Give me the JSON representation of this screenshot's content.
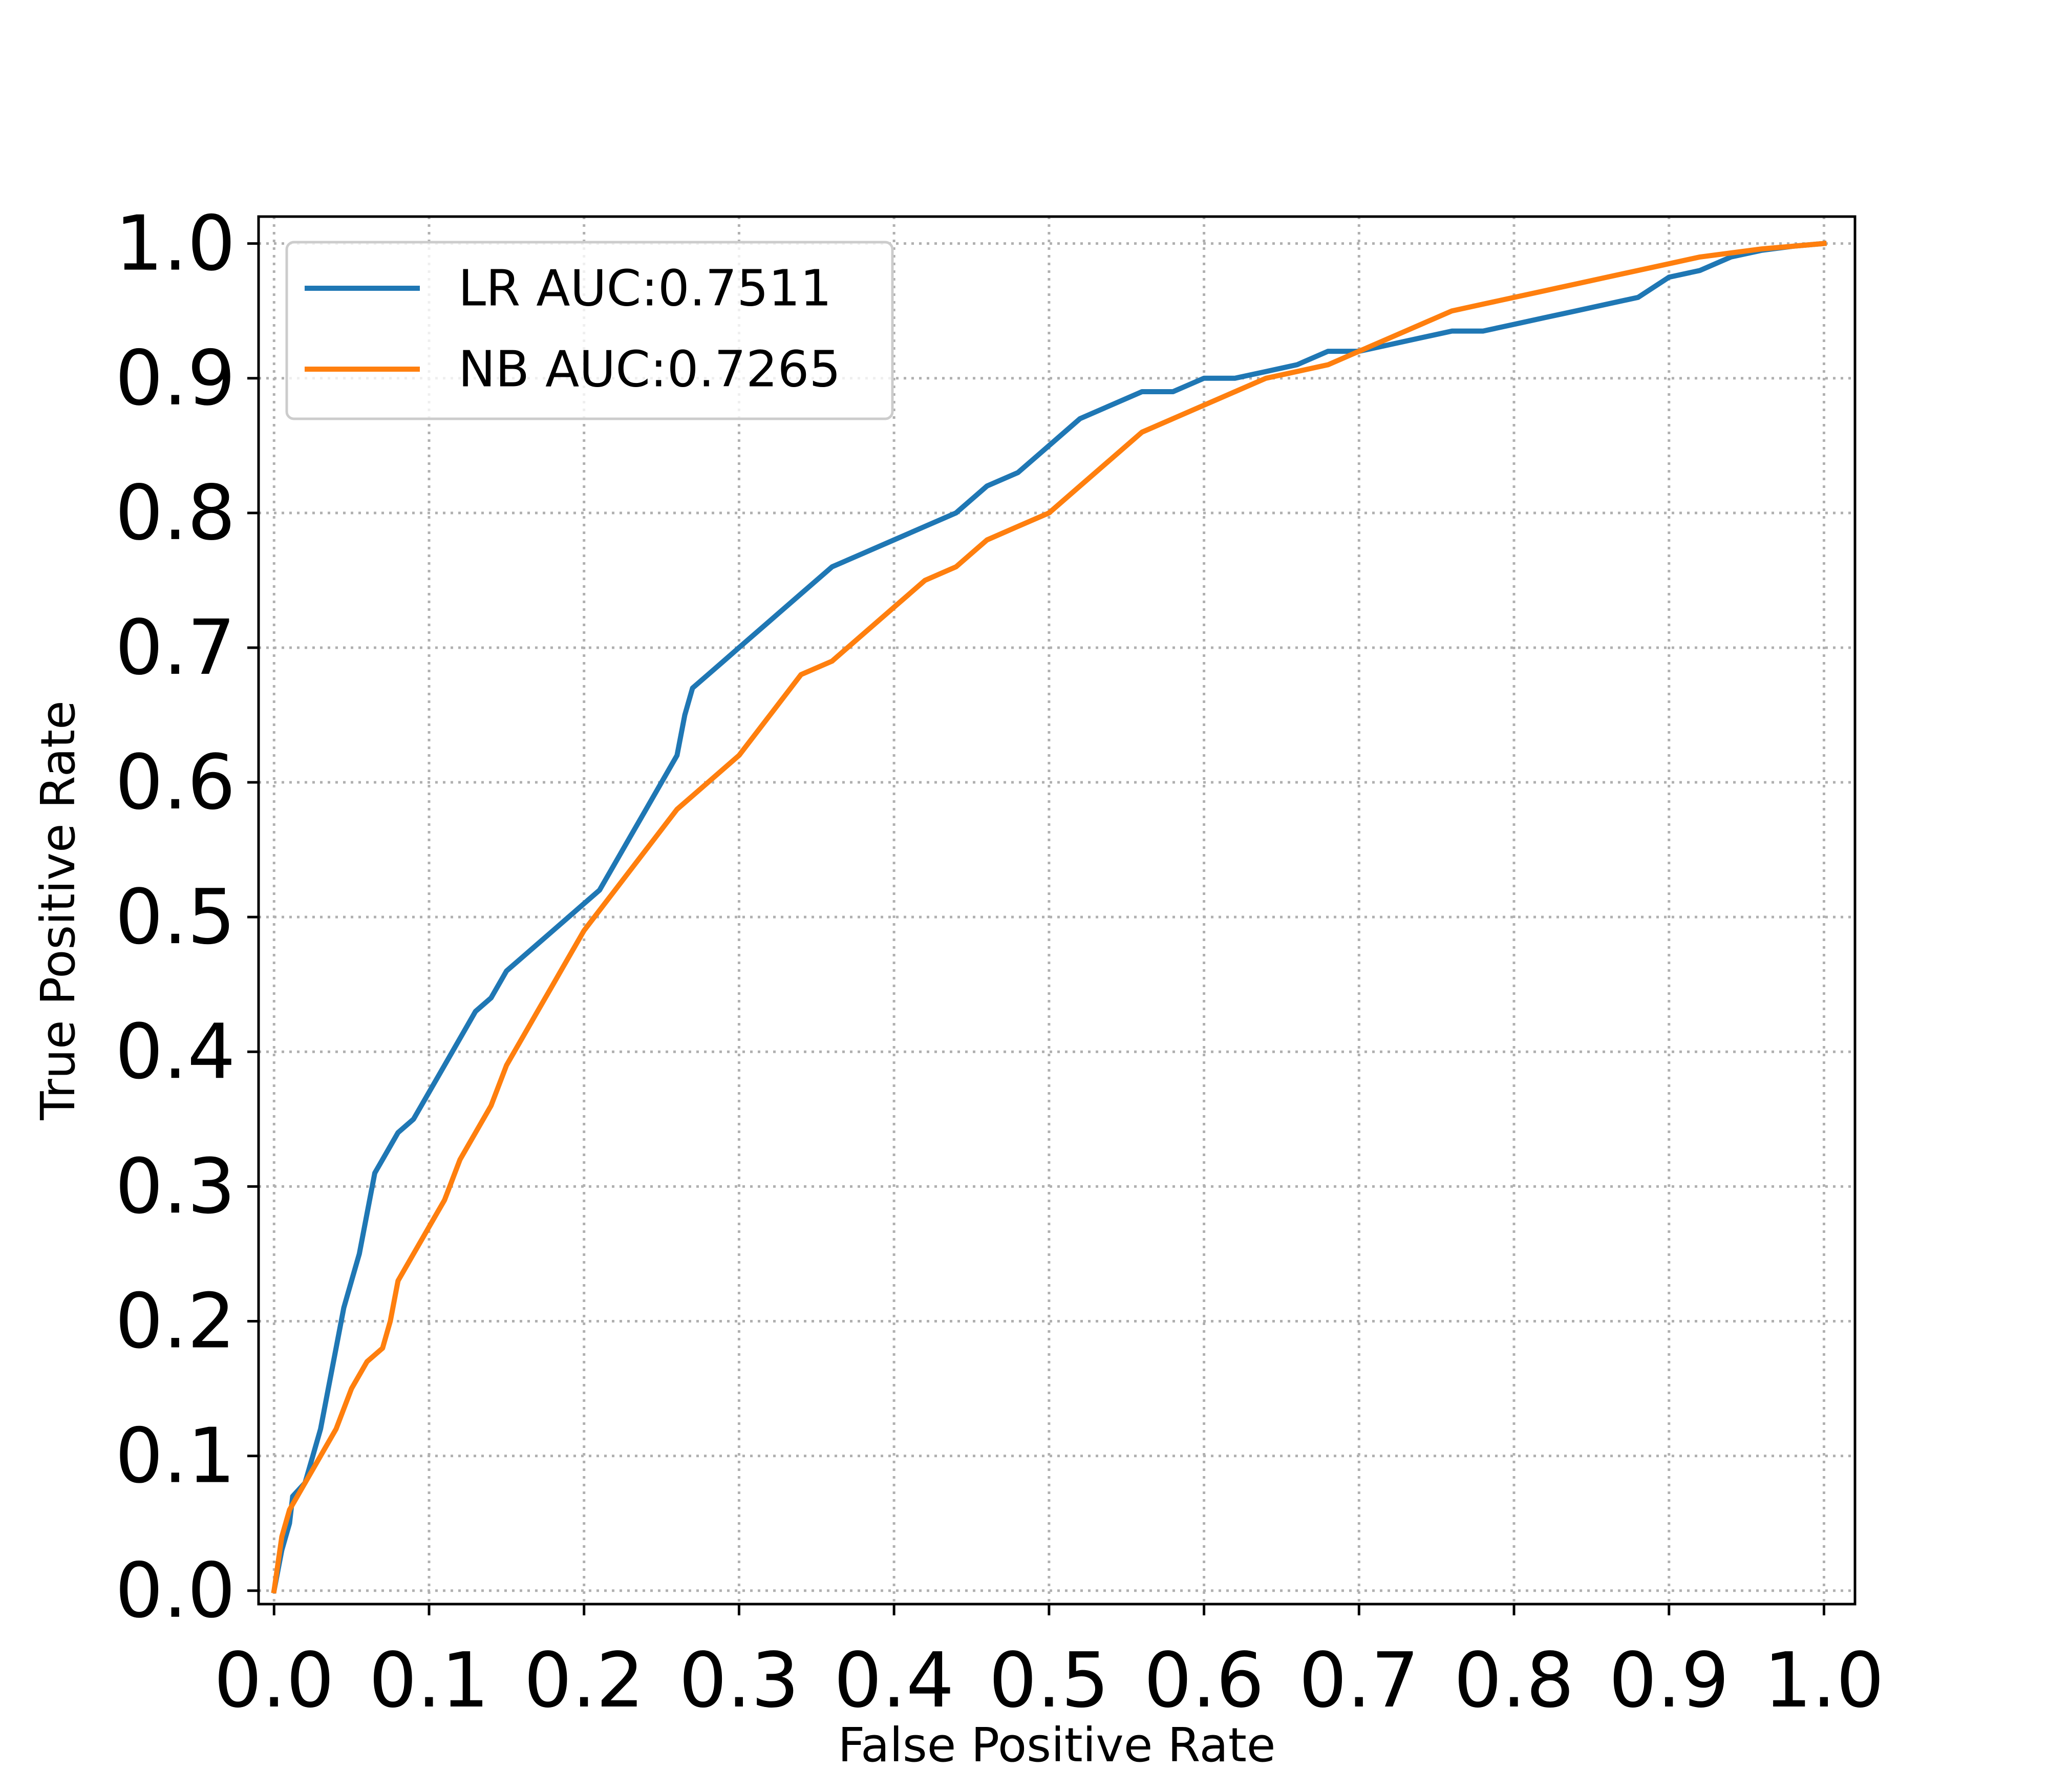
{
  "chart_data": {
    "type": "line",
    "title": "",
    "xlabel": "False Positive Rate",
    "ylabel": "True Positive Rate",
    "xlim": [
      -0.01,
      1.02
    ],
    "ylim": [
      -0.01,
      1.02
    ],
    "x_ticks": [
      "0.0",
      "0.1",
      "0.2",
      "0.3",
      "0.4",
      "0.5",
      "0.6",
      "0.7",
      "0.8",
      "0.9",
      "1.0"
    ],
    "y_ticks": [
      "0.0",
      "0.1",
      "0.2",
      "0.3",
      "0.4",
      "0.5",
      "0.6",
      "0.7",
      "0.8",
      "0.9",
      "1.0"
    ],
    "grid": true,
    "legend_position": "upper-left",
    "series": [
      {
        "name": "LR AUC:0.7511",
        "color": "#1f77b4",
        "points": [
          [
            0.0,
            0.0
          ],
          [
            0.005,
            0.03
          ],
          [
            0.01,
            0.05
          ],
          [
            0.012,
            0.07
          ],
          [
            0.02,
            0.08
          ],
          [
            0.025,
            0.1
          ],
          [
            0.03,
            0.12
          ],
          [
            0.035,
            0.15
          ],
          [
            0.04,
            0.18
          ],
          [
            0.045,
            0.21
          ],
          [
            0.05,
            0.23
          ],
          [
            0.055,
            0.25
          ],
          [
            0.06,
            0.28
          ],
          [
            0.065,
            0.31
          ],
          [
            0.07,
            0.32
          ],
          [
            0.08,
            0.34
          ],
          [
            0.09,
            0.35
          ],
          [
            0.1,
            0.37
          ],
          [
            0.11,
            0.39
          ],
          [
            0.12,
            0.41
          ],
          [
            0.13,
            0.43
          ],
          [
            0.14,
            0.44
          ],
          [
            0.15,
            0.46
          ],
          [
            0.16,
            0.47
          ],
          [
            0.17,
            0.48
          ],
          [
            0.18,
            0.49
          ],
          [
            0.19,
            0.5
          ],
          [
            0.2,
            0.51
          ],
          [
            0.21,
            0.52
          ],
          [
            0.22,
            0.54
          ],
          [
            0.23,
            0.56
          ],
          [
            0.24,
            0.58
          ],
          [
            0.25,
            0.6
          ],
          [
            0.26,
            0.62
          ],
          [
            0.265,
            0.65
          ],
          [
            0.27,
            0.67
          ],
          [
            0.28,
            0.68
          ],
          [
            0.29,
            0.69
          ],
          [
            0.3,
            0.7
          ],
          [
            0.32,
            0.72
          ],
          [
            0.34,
            0.74
          ],
          [
            0.36,
            0.76
          ],
          [
            0.38,
            0.77
          ],
          [
            0.4,
            0.78
          ],
          [
            0.42,
            0.79
          ],
          [
            0.44,
            0.8
          ],
          [
            0.46,
            0.82
          ],
          [
            0.48,
            0.83
          ],
          [
            0.5,
            0.85
          ],
          [
            0.52,
            0.87
          ],
          [
            0.54,
            0.88
          ],
          [
            0.56,
            0.89
          ],
          [
            0.58,
            0.89
          ],
          [
            0.6,
            0.9
          ],
          [
            0.62,
            0.9
          ],
          [
            0.64,
            0.905
          ],
          [
            0.66,
            0.91
          ],
          [
            0.68,
            0.92
          ],
          [
            0.7,
            0.92
          ],
          [
            0.72,
            0.925
          ],
          [
            0.74,
            0.93
          ],
          [
            0.76,
            0.935
          ],
          [
            0.78,
            0.935
          ],
          [
            0.8,
            0.94
          ],
          [
            0.82,
            0.945
          ],
          [
            0.84,
            0.95
          ],
          [
            0.86,
            0.955
          ],
          [
            0.88,
            0.96
          ],
          [
            0.9,
            0.975
          ],
          [
            0.92,
            0.98
          ],
          [
            0.94,
            0.99
          ],
          [
            0.96,
            0.995
          ],
          [
            0.98,
            0.998
          ],
          [
            1.0,
            1.0
          ]
        ]
      },
      {
        "name": "NB AUC:0.7265",
        "color": "#ff7f0e",
        "points": [
          [
            0.0,
            0.0
          ],
          [
            0.005,
            0.04
          ],
          [
            0.01,
            0.06
          ],
          [
            0.015,
            0.07
          ],
          [
            0.02,
            0.08
          ],
          [
            0.03,
            0.1
          ],
          [
            0.04,
            0.12
          ],
          [
            0.05,
            0.15
          ],
          [
            0.06,
            0.17
          ],
          [
            0.07,
            0.18
          ],
          [
            0.075,
            0.2
          ],
          [
            0.08,
            0.23
          ],
          [
            0.09,
            0.25
          ],
          [
            0.1,
            0.27
          ],
          [
            0.11,
            0.29
          ],
          [
            0.12,
            0.32
          ],
          [
            0.13,
            0.34
          ],
          [
            0.14,
            0.36
          ],
          [
            0.15,
            0.39
          ],
          [
            0.16,
            0.41
          ],
          [
            0.17,
            0.43
          ],
          [
            0.18,
            0.45
          ],
          [
            0.19,
            0.47
          ],
          [
            0.2,
            0.49
          ],
          [
            0.22,
            0.52
          ],
          [
            0.24,
            0.55
          ],
          [
            0.26,
            0.58
          ],
          [
            0.28,
            0.6
          ],
          [
            0.3,
            0.62
          ],
          [
            0.32,
            0.65
          ],
          [
            0.34,
            0.68
          ],
          [
            0.36,
            0.69
          ],
          [
            0.38,
            0.71
          ],
          [
            0.4,
            0.73
          ],
          [
            0.42,
            0.75
          ],
          [
            0.44,
            0.76
          ],
          [
            0.46,
            0.78
          ],
          [
            0.48,
            0.79
          ],
          [
            0.5,
            0.8
          ],
          [
            0.52,
            0.82
          ],
          [
            0.54,
            0.84
          ],
          [
            0.56,
            0.86
          ],
          [
            0.58,
            0.87
          ],
          [
            0.6,
            0.88
          ],
          [
            0.62,
            0.89
          ],
          [
            0.64,
            0.9
          ],
          [
            0.66,
            0.905
          ],
          [
            0.68,
            0.91
          ],
          [
            0.7,
            0.92
          ],
          [
            0.72,
            0.93
          ],
          [
            0.74,
            0.94
          ],
          [
            0.76,
            0.95
          ],
          [
            0.78,
            0.955
          ],
          [
            0.8,
            0.96
          ],
          [
            0.82,
            0.965
          ],
          [
            0.84,
            0.97
          ],
          [
            0.86,
            0.975
          ],
          [
            0.88,
            0.98
          ],
          [
            0.9,
            0.985
          ],
          [
            0.92,
            0.99
          ],
          [
            0.94,
            0.993
          ],
          [
            0.96,
            0.996
          ],
          [
            0.98,
            0.998
          ],
          [
            1.0,
            1.0
          ]
        ]
      }
    ]
  }
}
